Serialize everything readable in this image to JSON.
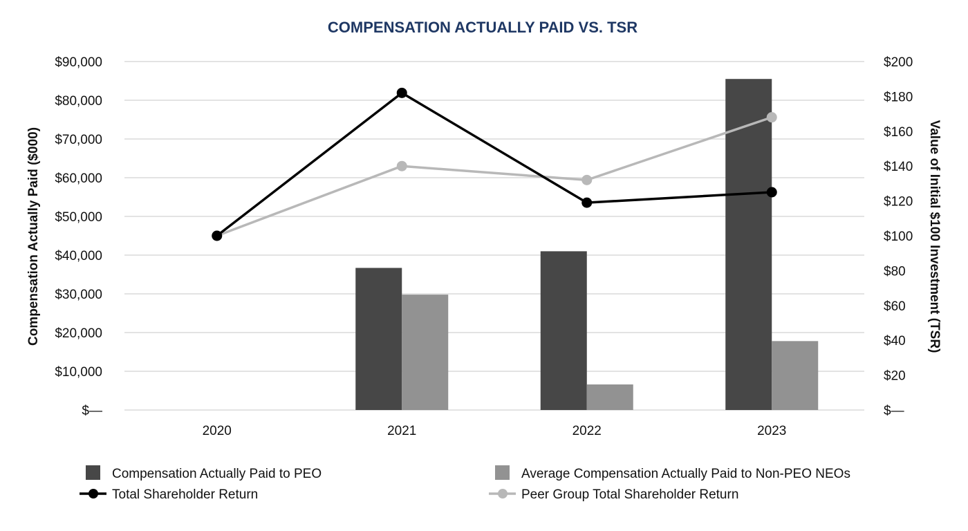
{
  "chart_data": {
    "type": "bar",
    "title": "COMPENSATION ACTUALLY PAID VS. TSR",
    "categories": [
      "2020",
      "2021",
      "2022",
      "2023"
    ],
    "ylabel": "Compensation Actually Paid ($000)",
    "ylabel_right": "Value of Initial $100 Investment (TSR)",
    "ylim": [
      0,
      90000
    ],
    "ylim_right": [
      0,
      200
    ],
    "y_ticks": [
      "$—",
      "$10,000",
      "$20,000",
      "$30,000",
      "$40,000",
      "$50,000",
      "$60,000",
      "$70,000",
      "$80,000",
      "$90,000"
    ],
    "y_ticks_right": [
      "$—",
      "$20",
      "$40",
      "$60",
      "$80",
      "$100",
      "$120",
      "$140",
      "$160",
      "$180",
      "$200"
    ],
    "grid": true,
    "legend_position": "bottom",
    "series": [
      {
        "name": "Compensation Actually Paid to PEO",
        "kind": "bar",
        "axis": "left",
        "color": "#474747",
        "values": [
          null,
          36700,
          41000,
          85500
        ]
      },
      {
        "name": "Average Compensation Actually Paid to Non-PEO NEOs",
        "kind": "bar",
        "axis": "left",
        "color": "#929292",
        "values": [
          null,
          29800,
          6600,
          17800
        ]
      },
      {
        "name": "Total Shareholder Return",
        "kind": "line",
        "axis": "right",
        "color": "#000000",
        "values": [
          100,
          182,
          119,
          125
        ]
      },
      {
        "name": "Peer Group Total Shareholder Return",
        "kind": "line",
        "axis": "right",
        "color": "#b8b8b8",
        "values": [
          100,
          140,
          132,
          168
        ]
      }
    ]
  }
}
